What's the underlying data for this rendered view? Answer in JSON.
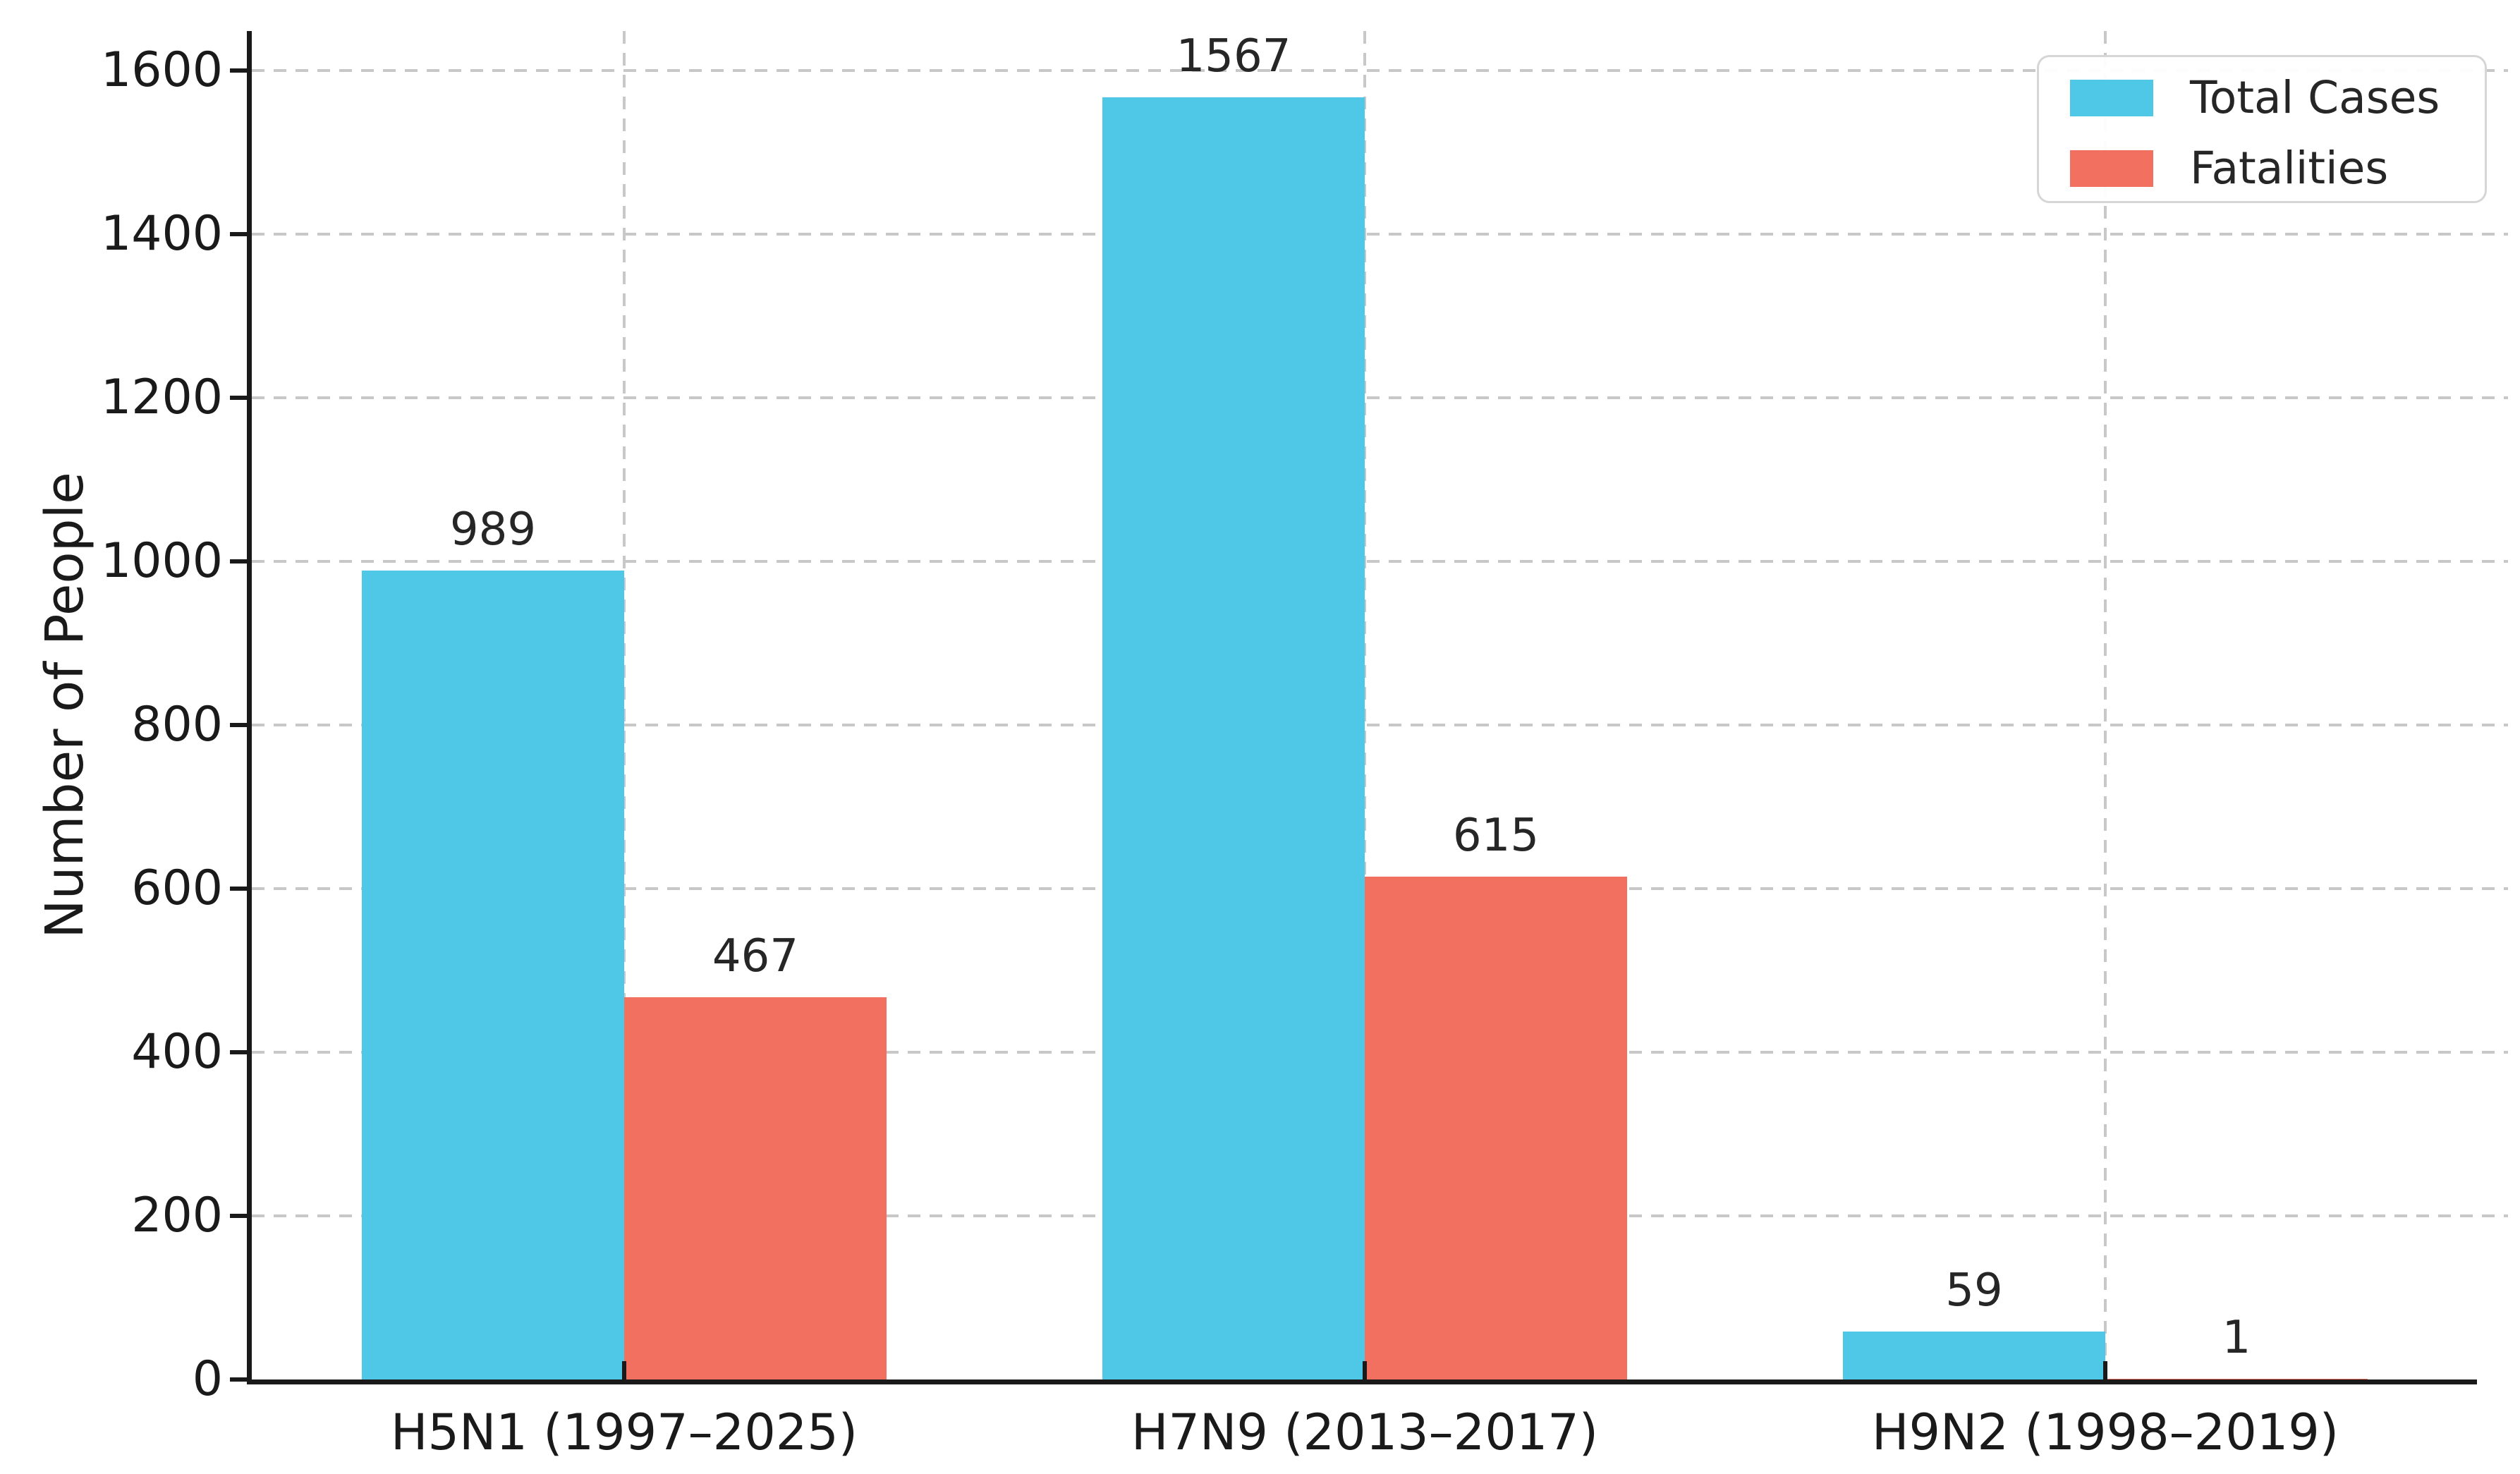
{
  "chart_data": {
    "type": "bar",
    "title": "",
    "categories": [
      "H5N1 (1997–2025)",
      "H7N9 (2013–2017)",
      "H9N2 (1998–2019)"
    ],
    "series": [
      {
        "name": "Total Cases",
        "color": "#4ec8e6",
        "values": [
          989,
          1567,
          59
        ]
      },
      {
        "name": "Fatalities",
        "color": "#f2705f",
        "values": [
          467,
          615,
          1
        ]
      }
    ],
    "xlabel": "",
    "ylabel": "Number of People",
    "ylim": [
      0,
      1650
    ],
    "yticks": [
      0,
      200,
      400,
      600,
      800,
      1000,
      1200,
      1400,
      1600
    ],
    "grid": "dashed horizontal and vertical",
    "legend_position": "upper right",
    "bar_value_labels": [
      [
        989,
        1567,
        59
      ],
      [
        467,
        615,
        1
      ]
    ]
  },
  "colors": {
    "axis": "#1a1a1a",
    "grid": "#c8c8c8",
    "text": "#262626",
    "legend_border": "#d6d6d6",
    "background": "#ffffff"
  }
}
